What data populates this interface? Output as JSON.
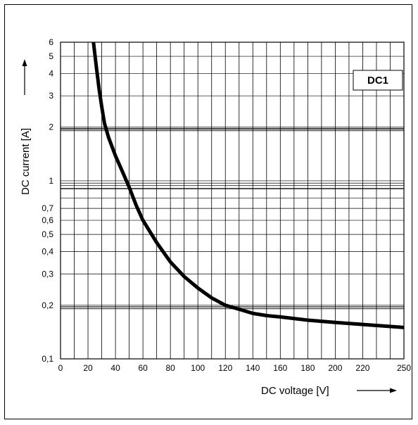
{
  "chart_data": {
    "type": "line",
    "annotation": "DC1",
    "xlabel": "DC voltage [V]",
    "ylabel": "DC current [A]",
    "xlim": [
      0,
      250
    ],
    "ylim": [
      0.1,
      6
    ],
    "y_scale": "log",
    "grid": true,
    "x_ticks": [
      {
        "value": 0,
        "label": "0"
      },
      {
        "value": 20,
        "label": "20"
      },
      {
        "value": 40,
        "label": "40"
      },
      {
        "value": 60,
        "label": "60"
      },
      {
        "value": 80,
        "label": "80"
      },
      {
        "value": 100,
        "label": "100"
      },
      {
        "value": 120,
        "label": "120"
      },
      {
        "value": 140,
        "label": "140"
      },
      {
        "value": 160,
        "label": "160"
      },
      {
        "value": 180,
        "label": "180"
      },
      {
        "value": 200,
        "label": "200"
      },
      {
        "value": 220,
        "label": "220"
      },
      {
        "value": 250,
        "label": "250"
      }
    ],
    "y_ticks": [
      {
        "value": 0.1,
        "label": "0,1"
      },
      {
        "value": 0.2,
        "label": "0,2"
      },
      {
        "value": 0.3,
        "label": "0,3"
      },
      {
        "value": 0.4,
        "label": "0,4"
      },
      {
        "value": 0.5,
        "label": "0,5"
      },
      {
        "value": 0.6,
        "label": "0,6"
      },
      {
        "value": 0.7,
        "label": "0,7"
      },
      {
        "value": 1,
        "label": "1"
      },
      {
        "value": 2,
        "label": "2"
      },
      {
        "value": 3,
        "label": "3"
      },
      {
        "value": 4,
        "label": "4"
      },
      {
        "value": 5,
        "label": "5"
      },
      {
        "value": 6,
        "label": "6"
      }
    ],
    "series": [
      {
        "x": [
          24,
          26,
          28,
          30,
          32,
          35,
          40,
          45,
          50,
          55,
          60,
          70,
          80,
          90,
          100,
          110,
          120,
          130,
          140,
          150,
          160,
          180,
          200,
          220,
          250
        ],
        "y": [
          6,
          4.4,
          3.3,
          2.6,
          2.1,
          1.75,
          1.38,
          1.13,
          0.92,
          0.73,
          0.6,
          0.45,
          0.35,
          0.29,
          0.25,
          0.22,
          0.2,
          0.19,
          0.18,
          0.175,
          0.172,
          0.165,
          0.16,
          0.156,
          0.15
        ],
        "color": "#000000"
      }
    ]
  }
}
